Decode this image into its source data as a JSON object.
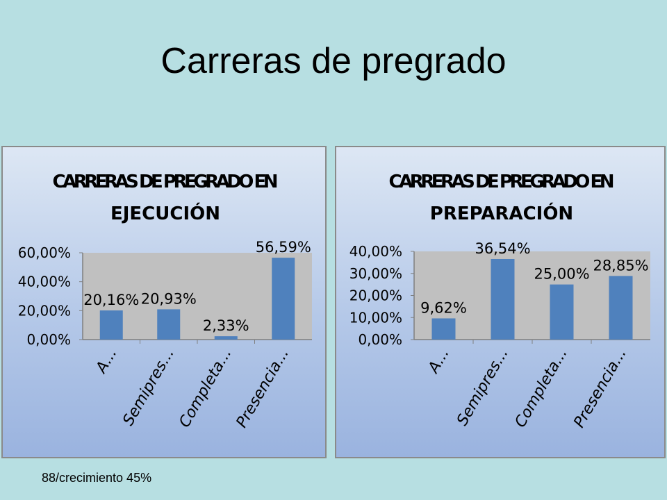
{
  "slide": {
    "title": "Carreras de pregrado",
    "footer": "88/crecimiento 45%"
  },
  "colors": {
    "background": "#b7dfe2",
    "bar": "#4f81bd",
    "plot_area": "#c0c0c0"
  },
  "chart_data": [
    {
      "type": "bar",
      "title_lines": [
        "CARRERAS DE PREGRADO EN",
        "EJECUCIÓN"
      ],
      "categories": [
        "A...",
        "Semipres...",
        "Completa...",
        "Presencia..."
      ],
      "values": [
        20.16,
        20.93,
        2.33,
        56.59
      ],
      "data_labels": [
        "20,16%",
        "20,93%",
        "2,33%",
        "56,59%"
      ],
      "ylim": [
        0,
        60
      ],
      "yticks": [
        "0,00%",
        "20,00%",
        "40,00%",
        "60,00%"
      ],
      "grid": false,
      "legend": "none"
    },
    {
      "type": "bar",
      "title_lines": [
        "CARRERAS DE PREGRADO EN",
        "PREPARACIÓN"
      ],
      "categories": [
        "A...",
        "Semipres...",
        "Completa...",
        "Presencia..."
      ],
      "values": [
        9.62,
        36.54,
        25.0,
        28.85
      ],
      "data_labels": [
        "9,62%",
        "36,54%",
        "25,00%",
        "28,85%"
      ],
      "ylim": [
        0,
        40
      ],
      "yticks": [
        "0,00%",
        "10,00%",
        "20,00%",
        "30,00%",
        "40,00%"
      ],
      "grid": false,
      "legend": "none"
    }
  ]
}
